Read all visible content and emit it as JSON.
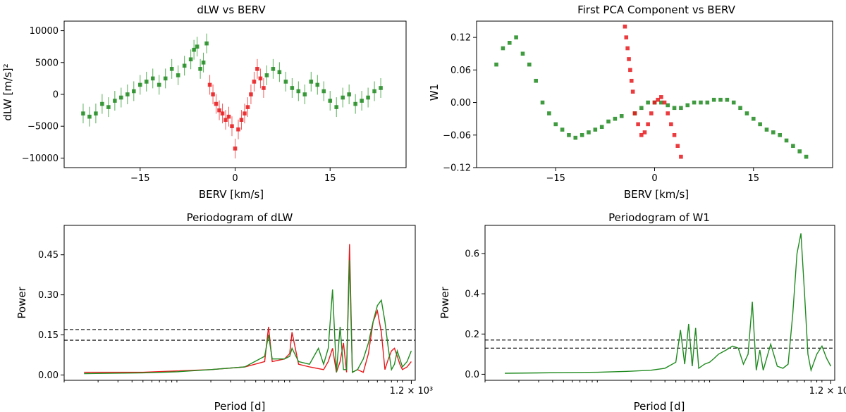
{
  "colors": {
    "green": "#1f8a1f",
    "red": "#e8191c",
    "errgreen": "#2e9a2e",
    "errred": "#f03030"
  },
  "chart_data": [
    {
      "id": "p1",
      "type": "scatter",
      "title": "dLW vs BERV",
      "xlabel": "BERV [km/s]",
      "ylabel": "dLW [m/s]²",
      "xlim": [
        -27,
        27
      ],
      "ylim": [
        -11500,
        11500
      ],
      "xticks": [
        -15,
        0,
        15
      ],
      "xtick_labels": [
        "−15",
        "0",
        "15"
      ],
      "yticks": [
        -10000,
        -5000,
        0,
        5000,
        10000
      ],
      "ytick_labels": [
        "−10000",
        "−5000",
        "0",
        "5000",
        "10000"
      ],
      "series": [
        {
          "name": "green",
          "color": "green",
          "x": [
            -24,
            -23,
            -22,
            -21,
            -20,
            -19,
            -18,
            -17,
            -16,
            -15,
            -14,
            -13,
            -12,
            -11,
            -10,
            -9,
            -8,
            -7,
            -6.5,
            -6,
            -5.5,
            -5,
            -4.5,
            5,
            6,
            7,
            8,
            9,
            10,
            11,
            12,
            13,
            14,
            15,
            16,
            17,
            18,
            19,
            20,
            21,
            22,
            23
          ],
          "y": [
            -3000,
            -3500,
            -3000,
            -1500,
            -2000,
            -1000,
            -500,
            0,
            500,
            1500,
            2000,
            2500,
            1500,
            2500,
            4000,
            3000,
            4500,
            5500,
            7000,
            7500,
            4000,
            5000,
            8000,
            3000,
            4000,
            3500,
            2000,
            1000,
            500,
            0,
            2000,
            1500,
            500,
            -1000,
            -2000,
            -500,
            0,
            -1500,
            -1000,
            -500,
            500,
            1000
          ]
        },
        {
          "name": "red",
          "color": "red",
          "x": [
            -4,
            -3.5,
            -3,
            -2.5,
            -2,
            -1.5,
            -1,
            -0.5,
            0,
            0.5,
            1,
            1.5,
            2,
            2.5,
            3,
            3.5,
            4,
            4.5
          ],
          "y": [
            1500,
            0,
            -1500,
            -2500,
            -3000,
            -4000,
            -3500,
            -5000,
            -8500,
            -5500,
            -4000,
            -3000,
            -2000,
            0,
            2000,
            4000,
            2500,
            1000
          ]
        }
      ]
    },
    {
      "id": "p2",
      "type": "scatter",
      "title": "First PCA Component vs BERV",
      "xlabel": "BERV [km/s]",
      "ylabel": "W1",
      "xlim": [
        -27,
        27
      ],
      "ylim": [
        -0.12,
        0.15
      ],
      "xticks": [
        -15,
        0,
        15
      ],
      "xtick_labels": [
        "−15",
        "0",
        "15"
      ],
      "yticks": [
        -0.12,
        -0.06,
        0.0,
        0.06,
        0.12
      ],
      "ytick_labels": [
        "−0.12",
        "−0.06",
        "0.00",
        "0.06",
        "0.12"
      ],
      "series": [
        {
          "name": "green",
          "color": "green",
          "x": [
            -24,
            -23,
            -22,
            -21,
            -20,
            -19,
            -18,
            -17,
            -16,
            -15,
            -14,
            -13,
            -12,
            -11,
            -10,
            -9,
            -8,
            -7,
            -6,
            -5,
            -3,
            -2,
            -1,
            0,
            1,
            2,
            3,
            4,
            5,
            6,
            7,
            8,
            9,
            10,
            11,
            12,
            13,
            14,
            15,
            16,
            17,
            18,
            19,
            20,
            21,
            22,
            23
          ],
          "y": [
            0.07,
            0.1,
            0.11,
            0.12,
            0.09,
            0.07,
            0.04,
            0.0,
            -0.02,
            -0.04,
            -0.05,
            -0.06,
            -0.065,
            -0.06,
            -0.055,
            -0.05,
            -0.045,
            -0.035,
            -0.03,
            -0.025,
            -0.02,
            -0.01,
            0.0,
            0.0,
            0.0,
            -0.005,
            -0.01,
            -0.01,
            -0.005,
            0.0,
            0.0,
            0.0,
            0.005,
            0.005,
            0.005,
            0.0,
            -0.01,
            -0.02,
            -0.03,
            -0.04,
            -0.05,
            -0.055,
            -0.06,
            -0.07,
            -0.08,
            -0.09,
            -0.1
          ]
        },
        {
          "name": "red",
          "color": "red",
          "x": [
            -4.5,
            -4.3,
            -4.1,
            -3.9,
            -3.7,
            -3.5,
            -3.3,
            -3,
            -2.5,
            -2,
            -1.5,
            -1,
            -0.5,
            0,
            0.5,
            1,
            1.5,
            2,
            2.5,
            3,
            3.5,
            4
          ],
          "y": [
            0.14,
            0.12,
            0.1,
            0.08,
            0.06,
            0.04,
            0.02,
            -0.02,
            -0.04,
            -0.06,
            -0.055,
            -0.04,
            -0.02,
            0.0,
            0.005,
            0.01,
            0.0,
            -0.02,
            -0.04,
            -0.06,
            -0.08,
            -0.1
          ]
        }
      ]
    },
    {
      "id": "p3",
      "type": "line",
      "title": "Periodogram of dLW",
      "xlabel": "Period [d]",
      "ylabel": "Power",
      "xscale": "log",
      "xlim": [
        1.0,
        1300
      ],
      "ylim": [
        -0.02,
        0.56
      ],
      "xtick_label": "1.2 × 10³",
      "yticks": [
        0.0,
        0.15,
        0.3,
        0.45
      ],
      "ytick_labels": [
        "0.00",
        "0.15",
        "0.30",
        "0.45"
      ],
      "hlines": [
        0.17,
        0.13
      ],
      "series": [
        {
          "name": "red",
          "color": "red",
          "x": [
            1.5,
            5,
            10,
            20,
            40,
            60,
            65,
            70,
            90,
            100,
            105,
            120,
            150,
            200,
            220,
            240,
            260,
            280,
            300,
            320,
            340,
            360,
            400,
            450,
            500,
            550,
            600,
            650,
            700,
            750,
            800,
            850,
            900,
            950,
            1000,
            1100,
            1200
          ],
          "y": [
            0.01,
            0.01,
            0.015,
            0.02,
            0.03,
            0.05,
            0.18,
            0.05,
            0.06,
            0.08,
            0.16,
            0.04,
            0.03,
            0.02,
            0.05,
            0.1,
            0.01,
            0.05,
            0.12,
            0.01,
            0.49,
            0.01,
            0.02,
            0.01,
            0.08,
            0.2,
            0.24,
            0.16,
            0.02,
            0.06,
            0.09,
            0.1,
            0.07,
            0.04,
            0.02,
            0.03,
            0.05
          ]
        },
        {
          "name": "green",
          "color": "green",
          "x": [
            1.5,
            5,
            10,
            20,
            40,
            60,
            65,
            70,
            90,
            100,
            105,
            120,
            150,
            180,
            200,
            220,
            240,
            260,
            280,
            300,
            320,
            340,
            360,
            400,
            450,
            500,
            550,
            600,
            650,
            700,
            750,
            800,
            850,
            900,
            950,
            1000,
            1100,
            1200
          ],
          "y": [
            0.005,
            0.008,
            0.012,
            0.02,
            0.03,
            0.07,
            0.15,
            0.06,
            0.06,
            0.07,
            0.1,
            0.05,
            0.04,
            0.1,
            0.04,
            0.1,
            0.32,
            0.01,
            0.18,
            0.02,
            0.02,
            0.43,
            0.01,
            0.02,
            0.06,
            0.12,
            0.2,
            0.26,
            0.28,
            0.2,
            0.1,
            0.02,
            0.04,
            0.09,
            0.06,
            0.03,
            0.05,
            0.09
          ]
        }
      ]
    },
    {
      "id": "p4",
      "type": "line",
      "title": "Periodogram of W1",
      "xlabel": "Period [d]",
      "ylabel": "Power",
      "xscale": "log",
      "xlim": [
        1.0,
        1300
      ],
      "ylim": [
        -0.03,
        0.74
      ],
      "xtick_label": "1.2 × 10³",
      "yticks": [
        0.0,
        0.2,
        0.4,
        0.6
      ],
      "ytick_labels": [
        "0.0",
        "0.2",
        "0.4",
        "0.6"
      ],
      "hlines": [
        0.17,
        0.13
      ],
      "series": [
        {
          "name": "green",
          "color": "green",
          "x": [
            1.5,
            5,
            10,
            20,
            30,
            40,
            50,
            55,
            60,
            65,
            70,
            75,
            80,
            90,
            100,
            110,
            120,
            140,
            160,
            180,
            200,
            220,
            240,
            260,
            280,
            300,
            350,
            400,
            450,
            500,
            550,
            600,
            650,
            700,
            750,
            800,
            900,
            1000,
            1100,
            1200
          ],
          "y": [
            0.005,
            0.008,
            0.01,
            0.015,
            0.02,
            0.03,
            0.06,
            0.22,
            0.05,
            0.25,
            0.04,
            0.23,
            0.03,
            0.05,
            0.06,
            0.08,
            0.1,
            0.12,
            0.14,
            0.13,
            0.05,
            0.1,
            0.36,
            0.02,
            0.12,
            0.02,
            0.15,
            0.04,
            0.03,
            0.05,
            0.3,
            0.6,
            0.7,
            0.4,
            0.1,
            0.02,
            0.1,
            0.14,
            0.08,
            0.04
          ]
        }
      ]
    }
  ]
}
